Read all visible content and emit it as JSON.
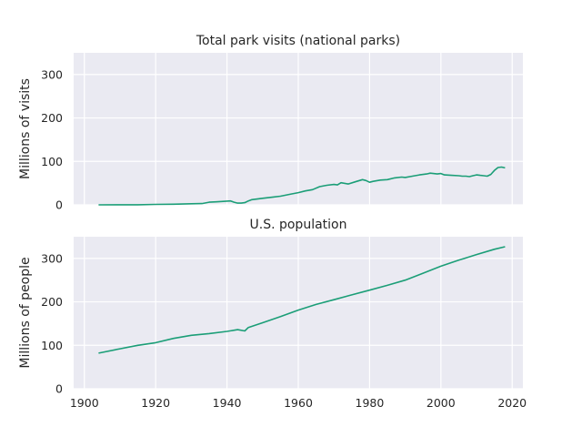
{
  "chart_data": [
    {
      "type": "line",
      "title": "Total park visits (national parks)",
      "xlabel": "",
      "ylabel": "Millions of visits",
      "xlim": [
        1897,
        2023
      ],
      "ylim": [
        0,
        350
      ],
      "yticks": [
        0,
        100,
        200,
        300
      ],
      "xticks": [
        1900,
        1920,
        1940,
        1960,
        1980,
        2000,
        2020
      ],
      "show_xtick_labels": false,
      "grid": true,
      "color": "#1b9e77",
      "series": [
        {
          "x": [
            1904,
            1910,
            1915,
            1920,
            1925,
            1930,
            1933,
            1935,
            1937,
            1939,
            1941,
            1942,
            1943,
            1944,
            1945,
            1946,
            1947,
            1950,
            1953,
            1955,
            1958,
            1960,
            1962,
            1964,
            1966,
            1968,
            1970,
            1971,
            1972,
            1974,
            1976,
            1978,
            1979,
            1980,
            1981,
            1983,
            1985,
            1987,
            1989,
            1990,
            1992,
            1994,
            1996,
            1997,
            1999,
            2000,
            2001,
            2003,
            2005,
            2006,
            2007,
            2008,
            2009,
            2010,
            2011,
            2012,
            2013,
            2014,
            2015,
            2016,
            2017,
            2018
          ],
          "y": [
            0.1,
            0.2,
            0.3,
            1,
            1.5,
            2.5,
            3,
            6,
            7,
            8,
            9,
            6,
            4,
            4,
            5,
            9,
            12,
            15,
            18,
            20,
            25,
            28,
            32,
            35,
            42,
            45,
            47,
            46,
            51,
            48,
            53,
            58,
            56,
            52,
            54,
            57,
            58,
            62,
            64,
            63,
            66,
            69,
            71,
            73,
            71,
            72,
            69,
            68,
            67,
            66,
            66,
            65,
            67,
            69,
            68,
            67,
            66,
            70,
            79,
            86,
            87,
            85
          ]
        }
      ]
    },
    {
      "type": "line",
      "title": "U.S. population",
      "xlabel": "",
      "ylabel": "Millions of people",
      "xlim": [
        1897,
        2023
      ],
      "ylim": [
        0,
        350
      ],
      "yticks": [
        0,
        100,
        200,
        300
      ],
      "xticks": [
        1900,
        1920,
        1940,
        1960,
        1980,
        2000,
        2020
      ],
      "show_xtick_labels": true,
      "grid": true,
      "color": "#1b9e77",
      "series": [
        {
          "x": [
            1904,
            1910,
            1915,
            1920,
            1925,
            1930,
            1935,
            1940,
            1943,
            1945,
            1946,
            1950,
            1955,
            1960,
            1965,
            1970,
            1975,
            1980,
            1985,
            1990,
            1995,
            2000,
            2005,
            2010,
            2015,
            2018
          ],
          "y": [
            82,
            92,
            100,
            106,
            116,
            123,
            127,
            132,
            136,
            133,
            141,
            152,
            166,
            181,
            194,
            205,
            216,
            227,
            238,
            250,
            266,
            282,
            296,
            309,
            321,
            327
          ]
        }
      ]
    }
  ]
}
